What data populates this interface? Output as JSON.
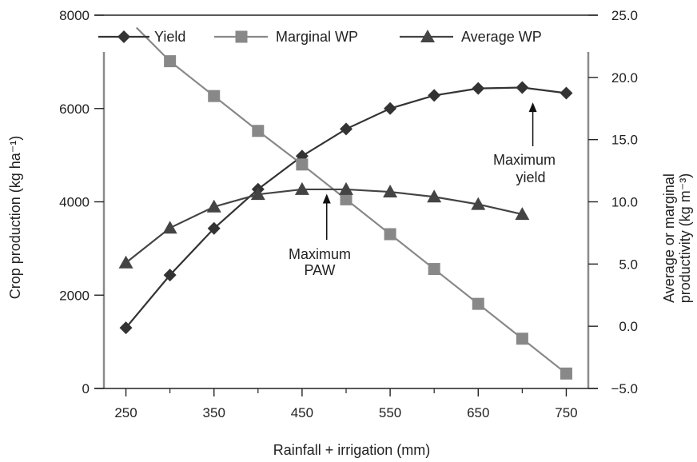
{
  "chart_data": {
    "type": "line",
    "xlabel": "Rainfall + irrigation (mm)",
    "ylabel_left": "Crop production (kg ha⁻¹)",
    "ylabel_right": [
      "Average or marginal",
      "productivity (kg m⁻³)"
    ],
    "xlim": [
      225,
      775
    ],
    "ylim_left": [
      0,
      8000
    ],
    "ylim_right": [
      -5,
      25
    ],
    "x_ticks": [
      250,
      350,
      450,
      550,
      650,
      750
    ],
    "x_tick_labels": [
      "250",
      "350",
      "450",
      "550",
      "650",
      "750"
    ],
    "y_left_ticks": [
      0,
      2000,
      4000,
      6000,
      8000
    ],
    "y_left_tick_labels": [
      "0",
      "2000",
      "4000",
      "6000",
      "8000"
    ],
    "y_right_ticks": [
      -5,
      0,
      5,
      10,
      15,
      20,
      25
    ],
    "y_right_tick_labels": [
      "−5.0",
      "0.0",
      "5.0",
      "10.0",
      "15.0",
      "20.0",
      "25.0"
    ],
    "legend_position": "top",
    "series": [
      {
        "name": "Yield",
        "axis": "left",
        "marker": "diamond",
        "color": "#333333",
        "x": [
          250,
          300,
          350,
          400,
          450,
          500,
          550,
          600,
          650,
          700,
          750
        ],
        "y": [
          1300,
          2430,
          3430,
          4270,
          4980,
          5560,
          6000,
          6280,
          6430,
          6450,
          6330
        ]
      },
      {
        "name": "Marginal WP",
        "axis": "right",
        "marker": "square",
        "color": "#888888",
        "x": [
          300,
          350,
          400,
          450,
          500,
          550,
          600,
          650,
          700,
          750
        ],
        "y": [
          21.3,
          18.5,
          15.7,
          13.0,
          10.2,
          7.4,
          4.6,
          1.8,
          -1.0,
          -3.8
        ],
        "extends_to": [
          262,
          24.0
        ]
      },
      {
        "name": "Average WP",
        "axis": "right",
        "marker": "triangle",
        "color": "#444444",
        "x": [
          250,
          300,
          350,
          400,
          450,
          500,
          550,
          600,
          650,
          700
        ],
        "y": [
          5.1,
          7.9,
          9.6,
          10.6,
          11.0,
          11.0,
          10.8,
          10.4,
          9.8,
          9.0
        ]
      }
    ],
    "annotations": [
      {
        "lines": [
          "Maximum",
          "PAW"
        ],
        "arrow_x": 478,
        "arrow_y_right": 10.9
      },
      {
        "lines": [
          "Maximum",
          "yield"
        ],
        "arrow_x": 712,
        "arrow_y_left": 6200
      }
    ]
  }
}
